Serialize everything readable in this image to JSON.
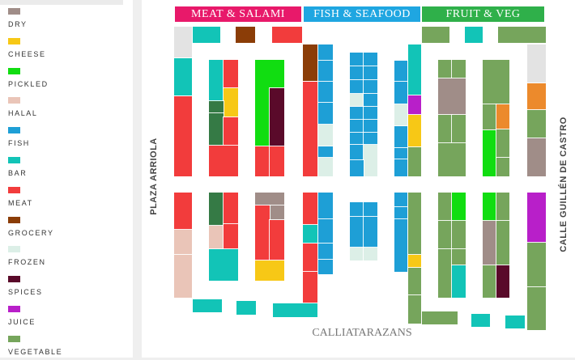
{
  "legend": {
    "items": [
      {
        "key": "dry",
        "label": "DRY",
        "color": "#a08d88"
      },
      {
        "key": "cheese",
        "label": "CHEESE",
        "color": "#f7c816"
      },
      {
        "key": "pickled",
        "label": "PICKLED",
        "color": "#11dd11"
      },
      {
        "key": "halal",
        "label": "HALAL",
        "color": "#eac5b8"
      },
      {
        "key": "fish",
        "label": "FISH",
        "color": "#1e9fd6"
      },
      {
        "key": "bar",
        "label": "BAR",
        "color": "#12c4b7"
      },
      {
        "key": "meat",
        "label": "MEAT",
        "color": "#f23c3c"
      },
      {
        "key": "grocery",
        "label": "GROCERY",
        "color": "#8b3d07"
      },
      {
        "key": "frozen",
        "label": "FROZEN",
        "color": "#dcefe7"
      },
      {
        "key": "spices",
        "label": "SPICES",
        "color": "#5a0a2a"
      },
      {
        "key": "juice",
        "label": "JUICE",
        "color": "#b81fc9"
      },
      {
        "key": "vegetable",
        "label": "VEGETABLE",
        "color": "#76a55c"
      }
    ]
  },
  "extra_colors": {
    "gray": "#e3e3e3",
    "darkgreen": "#357a45",
    "orange": "#ec8a2c"
  },
  "sections": {
    "meat": {
      "label": "MEAT & SALAMI",
      "color": "#e8196a"
    },
    "fish": {
      "label": "FISH & SEAFOOD",
      "color": "#1fa6e1"
    },
    "fruit": {
      "label": "FRUIT & VEG",
      "color": "#2fb04a"
    }
  },
  "streets": {
    "left": "PLAZA ARRIOLA",
    "right": "CALLE GUILLÉN DE CASTRO",
    "bottom": "CALLIATARAZANS"
  }
}
